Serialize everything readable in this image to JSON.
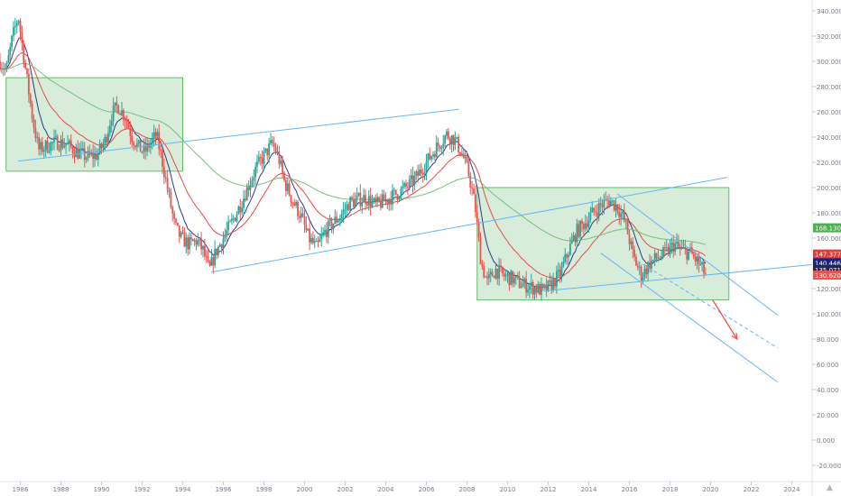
{
  "chart_data": {
    "type": "candlestick",
    "title": "",
    "xlabel": "",
    "ylabel": "",
    "xlim": [
      1985.0,
      2025.0
    ],
    "ylim": [
      -30,
      345
    ],
    "x_ticks": [
      "1986",
      "1988",
      "1990",
      "1992",
      "1994",
      "1996",
      "1998",
      "2000",
      "2002",
      "2004",
      "2006",
      "2008",
      "2010",
      "2012",
      "2014",
      "2016",
      "2018",
      "2020",
      "2022",
      "2024"
    ],
    "y_ticks": [
      "340.000",
      "320.000",
      "300.000",
      "280.000",
      "260.000",
      "240.000",
      "220.000",
      "200.000",
      "180.000",
      "160.000",
      "140.000",
      "120.000",
      "100.000",
      "80.000",
      "60.000",
      "40.000",
      "20.000",
      "0.000",
      "-20.000"
    ],
    "price_path": [
      [
        1985.0,
        300
      ],
      [
        1985.3,
        292
      ],
      [
        1985.6,
        318
      ],
      [
        1985.9,
        336
      ],
      [
        1986.2,
        300
      ],
      [
        1986.6,
        255
      ],
      [
        1986.9,
        230
      ],
      [
        1987.3,
        233
      ],
      [
        1987.8,
        236
      ],
      [
        1988.3,
        234
      ],
      [
        1988.8,
        228
      ],
      [
        1989.3,
        224
      ],
      [
        1989.8,
        226
      ],
      [
        1990.2,
        238
      ],
      [
        1990.5,
        258
      ],
      [
        1990.8,
        265
      ],
      [
        1991.2,
        255
      ],
      [
        1991.5,
        240
      ],
      [
        1991.8,
        232
      ],
      [
        1992.1,
        228
      ],
      [
        1992.4,
        235
      ],
      [
        1992.7,
        242
      ],
      [
        1993.0,
        220
      ],
      [
        1993.3,
        195
      ],
      [
        1993.6,
        170
      ],
      [
        1993.9,
        160
      ],
      [
        1994.3,
        155
      ],
      [
        1994.7,
        158
      ],
      [
        1995.0,
        150
      ],
      [
        1995.3,
        134
      ],
      [
        1995.6,
        148
      ],
      [
        1996.0,
        160
      ],
      [
        1996.4,
        172
      ],
      [
        1996.8,
        185
      ],
      [
        1997.2,
        200
      ],
      [
        1997.6,
        215
      ],
      [
        1998.0,
        225
      ],
      [
        1998.4,
        235
      ],
      [
        1998.7,
        225
      ],
      [
        1999.0,
        205
      ],
      [
        1999.4,
        190
      ],
      [
        1999.8,
        178
      ],
      [
        2000.2,
        160
      ],
      [
        2000.6,
        152
      ],
      [
        2001.0,
        165
      ],
      [
        2001.4,
        172
      ],
      [
        2001.8,
        178
      ],
      [
        2002.2,
        188
      ],
      [
        2002.6,
        190
      ],
      [
        2003.0,
        192
      ],
      [
        2003.5,
        186
      ],
      [
        2004.0,
        190
      ],
      [
        2004.5,
        195
      ],
      [
        2005.0,
        200
      ],
      [
        2005.5,
        208
      ],
      [
        2006.0,
        220
      ],
      [
        2006.5,
        232
      ],
      [
        2007.0,
        242
      ],
      [
        2007.4,
        238
      ],
      [
        2007.8,
        225
      ],
      [
        2008.1,
        210
      ],
      [
        2008.4,
        185
      ],
      [
        2008.7,
        140
      ],
      [
        2009.0,
        125
      ],
      [
        2009.4,
        135
      ],
      [
        2009.8,
        130
      ],
      [
        2010.2,
        128
      ],
      [
        2010.6,
        124
      ],
      [
        2011.0,
        122
      ],
      [
        2011.4,
        120
      ],
      [
        2011.8,
        118
      ],
      [
        2012.2,
        124
      ],
      [
        2012.6,
        132
      ],
      [
        2013.0,
        150
      ],
      [
        2013.4,
        165
      ],
      [
        2013.8,
        172
      ],
      [
        2014.2,
        180
      ],
      [
        2014.6,
        186
      ],
      [
        2015.0,
        190
      ],
      [
        2015.4,
        185
      ],
      [
        2015.8,
        172
      ],
      [
        2016.2,
        145
      ],
      [
        2016.6,
        130
      ],
      [
        2017.0,
        140
      ],
      [
        2017.4,
        145
      ],
      [
        2017.8,
        148
      ],
      [
        2018.2,
        155
      ],
      [
        2018.6,
        150
      ],
      [
        2019.0,
        148
      ],
      [
        2019.4,
        140
      ],
      [
        2019.8,
        130
      ]
    ],
    "indicators": [
      {
        "name": "ma_fast",
        "color": "#1a237e",
        "last": 140.446
      },
      {
        "name": "ma_mid",
        "color": "#e53935",
        "last": 147.377
      },
      {
        "name": "ma_slow",
        "color": "#66bb6a",
        "last": 168.13
      }
    ],
    "price_labels": [
      {
        "text": "168.130",
        "value": 168.13,
        "bg": "#4caf50"
      },
      {
        "text": "147.377",
        "value": 147.377,
        "bg": "#e53935"
      },
      {
        "text": "140.446",
        "value": 140.446,
        "bg": "#1a237e"
      },
      {
        "text": "135.071",
        "value": 135.071,
        "bg": "#26264d"
      },
      {
        "text": "130.620",
        "value": 130.62,
        "bg": "#ef5350"
      }
    ],
    "annotations": {
      "zones": [
        {
          "x": [
            1985.3,
            1994.0
          ],
          "y": [
            213,
            287
          ]
        },
        {
          "x": [
            2008.5,
            2020.9
          ],
          "y": [
            111,
            200
          ]
        }
      ],
      "trendlines": [
        {
          "from": [
            1985.9,
            221
          ],
          "to": [
            2007.6,
            262
          ]
        },
        {
          "from": [
            1995.4,
            133
          ],
          "to": [
            2020.8,
            208
          ]
        },
        {
          "from": [
            2011.8,
            118
          ],
          "to": [
            2025.0,
            139
          ]
        },
        {
          "from": [
            2015.4,
            195
          ],
          "to": [
            2023.3,
            99
          ]
        },
        {
          "from": [
            2014.6,
            148
          ],
          "to": [
            2023.3,
            46
          ]
        }
      ],
      "dashed_line": {
        "from": [
          2016.4,
          142
        ],
        "to": [
          2023.3,
          73
        ]
      },
      "arrow": {
        "from": [
          2020.1,
          111
        ],
        "to": [
          2021.3,
          80
        ]
      }
    },
    "grid": false,
    "axis_position": "right"
  },
  "colors": {
    "up": "#26a69a",
    "down": "#ef5350",
    "zone_fill": "rgba(76,175,80,0.22)",
    "zone_stroke": "#66bb6a",
    "trend": "#64b5f6",
    "arrow": "#ef5350",
    "axis_text": "#787b86"
  }
}
